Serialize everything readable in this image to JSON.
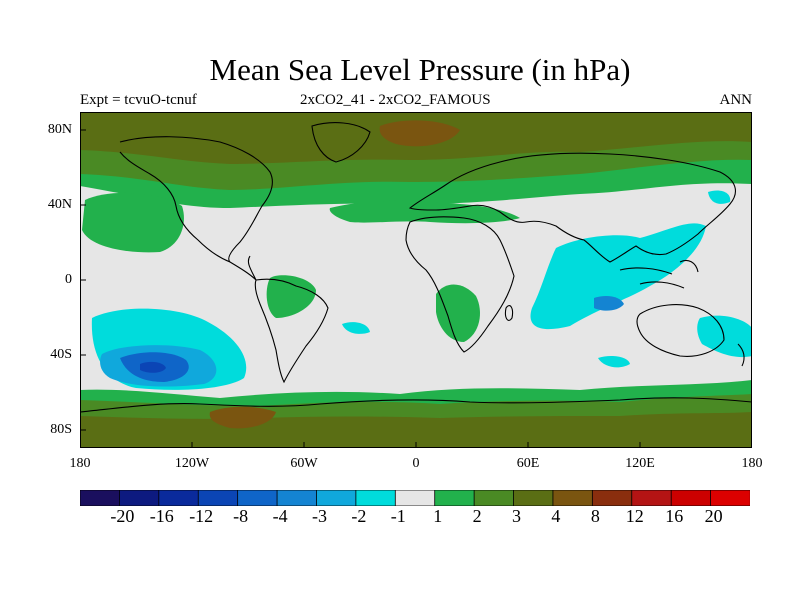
{
  "title": "Mean Sea Level Pressure (in hPa)",
  "subtitle_left": "Expt = tcvuO-tcnuf",
  "subtitle_center": "2xCO2_41 - 2xCO2_FAMOUS",
  "subtitle_right": "ANN",
  "lat_labels": [
    "80N",
    "40N",
    "0",
    "40S",
    "80S"
  ],
  "lon_labels": [
    "180",
    "120W",
    "60W",
    "0",
    "60E",
    "120E",
    "180"
  ],
  "colorbar": {
    "labels": [
      "-20",
      "-16",
      "-12",
      "-8",
      "-4",
      "-3",
      "-2",
      "-1",
      "1",
      "2",
      "3",
      "4",
      "8",
      "12",
      "16",
      "20"
    ],
    "colors": [
      "#1a0f5e",
      "#0d1a80",
      "#0a2a9c",
      "#0b45b5",
      "#0f65c8",
      "#1484d2",
      "#10a8dc",
      "#00dcdc",
      "#e6e6e6",
      "#22b14c",
      "#4a8a24",
      "#5a6e14",
      "#7a5510",
      "#8a2e0e",
      "#b41414",
      "#cc0000",
      "#dc0000"
    ]
  }
}
